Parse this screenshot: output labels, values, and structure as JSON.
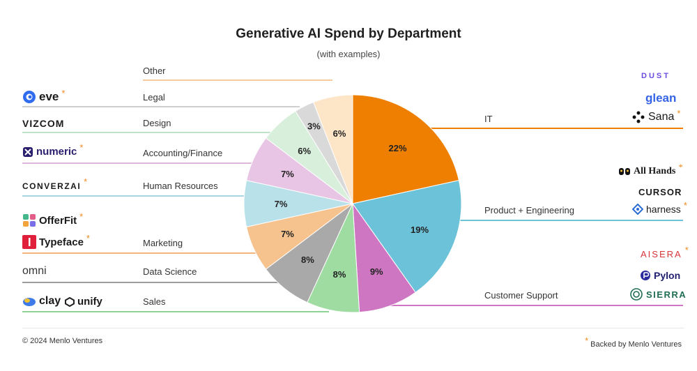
{
  "chart_data": {
    "type": "pie",
    "title": "Generative AI Spend by Department",
    "subtitle": "(with examples)",
    "slices": [
      {
        "name": "IT",
        "value": 22,
        "label": "22%",
        "color": "#ee7f00"
      },
      {
        "name": "Product + Engineering",
        "value": 19,
        "label": "19%",
        "color": "#6cc2d8"
      },
      {
        "name": "Customer Support",
        "value": 9,
        "label": "9%",
        "color": "#cf76c2"
      },
      {
        "name": "Sales",
        "value": 8,
        "label": "8%",
        "color": "#9fdca2"
      },
      {
        "name": "Data Science",
        "value": 8,
        "label": "8%",
        "color": "#a9a9a9"
      },
      {
        "name": "Marketing",
        "value": 7,
        "label": "7%",
        "color": "#f6c38f"
      },
      {
        "name": "Human Resources",
        "value": 7,
        "label": "7%",
        "color": "#b9e1ea"
      },
      {
        "name": "Accounting/Finance",
        "value": 7,
        "label": "7%",
        "color": "#e8c5e5"
      },
      {
        "name": "Design",
        "value": 6,
        "label": "6%",
        "color": "#d7efdb"
      },
      {
        "name": "Legal",
        "value": 3,
        "label": "3%",
        "color": "#d9d9d9"
      },
      {
        "name": "Other",
        "value": 6,
        "label": "6%",
        "color": "#fde5c8"
      }
    ]
  },
  "departments": {
    "other": "Other",
    "legal": "Legal",
    "design": "Design",
    "accounting": "Accounting/Finance",
    "hr": "Human Resources",
    "marketing": "Marketing",
    "data_science": "Data Science",
    "sales": "Sales",
    "it": "IT",
    "product": "Product + Engineering",
    "support": "Customer Support"
  },
  "logos": {
    "eve": "eve",
    "vizcom": "VIZCOM",
    "numeric": "numeric",
    "converzai": "CONVERZAI",
    "offerfit": "OfferFit",
    "typeface": "Typeface",
    "omni": "omni",
    "clay": "clay",
    "unify": "unify",
    "dust": "DUST",
    "glean": "glean",
    "sana": "Sana",
    "allhands": "All Hands",
    "cursor": "CURSOR",
    "harness": "harness",
    "aisera": "AISERA",
    "pylon": "Pylon",
    "sierra": "SIERRA"
  },
  "star": "*",
  "footer": {
    "copyright": "© 2024 Menlo Ventures",
    "backed": "Backed by Menlo Ventures"
  }
}
